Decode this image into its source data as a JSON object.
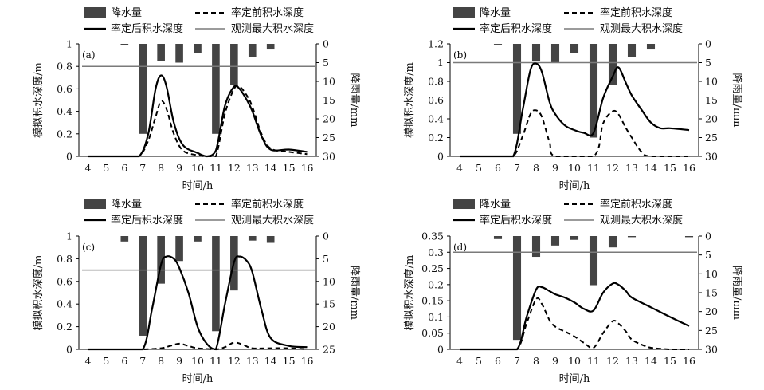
{
  "figure": {
    "legend": {
      "precip": "降水量",
      "before": "率定前积水深度",
      "after": "率定后积水深度",
      "observed": "观测最大积水深度"
    },
    "xlabel": "时间/h",
    "ylabel": "模拟积水深度/m",
    "y2label": "降雨量/mm",
    "colors": {
      "bar": "#444444",
      "line": "#000000",
      "observed": "#7a7a7a"
    }
  },
  "chart_data": [
    {
      "type": "bar+line",
      "panel_label": "(a)",
      "x": [
        4,
        5,
        6,
        7,
        8,
        9,
        10,
        11,
        12,
        13,
        14,
        15,
        16
      ],
      "ylim": [
        0,
        1.0
      ],
      "yticks": [
        0,
        0.2,
        0.4,
        0.6,
        0.8,
        1.0
      ],
      "y2lim": [
        0,
        30
      ],
      "y2ticks": [
        0,
        5,
        10,
        15,
        20,
        25,
        30
      ],
      "precipitation_mm": [
        0,
        0,
        0.3,
        24,
        4.5,
        5,
        2.5,
        24,
        11,
        3.5,
        1.5,
        0,
        0
      ],
      "before": [
        [
          4,
          0
        ],
        [
          6,
          0
        ],
        [
          6.8,
          0
        ],
        [
          7.3,
          0.14
        ],
        [
          7.7,
          0.35
        ],
        [
          8,
          0.49
        ],
        [
          8.3,
          0.42
        ],
        [
          8.7,
          0.2
        ],
        [
          9.2,
          0.05
        ],
        [
          10,
          0.01
        ],
        [
          10.5,
          0
        ],
        [
          11,
          0
        ],
        [
          11.5,
          0.38
        ],
        [
          12,
          0.6
        ],
        [
          12.3,
          0.62
        ],
        [
          12.7,
          0.54
        ],
        [
          13,
          0.44
        ],
        [
          13.5,
          0.2
        ],
        [
          14,
          0.07
        ],
        [
          15,
          0.04
        ],
        [
          16,
          0.02
        ]
      ],
      "after": [
        [
          4,
          0
        ],
        [
          6,
          0
        ],
        [
          6.8,
          0
        ],
        [
          7.3,
          0.2
        ],
        [
          7.7,
          0.6
        ],
        [
          8,
          0.72
        ],
        [
          8.3,
          0.62
        ],
        [
          8.7,
          0.3
        ],
        [
          9.2,
          0.1
        ],
        [
          10,
          0.03
        ],
        [
          10.5,
          0
        ],
        [
          11,
          0.05
        ],
        [
          11.5,
          0.45
        ],
        [
          12,
          0.62
        ],
        [
          12.3,
          0.6
        ],
        [
          12.7,
          0.5
        ],
        [
          13,
          0.4
        ],
        [
          13.5,
          0.18
        ],
        [
          14,
          0.06
        ],
        [
          15,
          0.06
        ],
        [
          16,
          0.04
        ]
      ],
      "observed_max": 0.8
    },
    {
      "type": "bar+line",
      "panel_label": "(b)",
      "x": [
        4,
        5,
        6,
        7,
        8,
        9,
        10,
        11,
        12,
        13,
        14,
        15,
        16
      ],
      "ylim": [
        0,
        1.2
      ],
      "yticks": [
        0,
        0.2,
        0.4,
        0.6,
        0.8,
        1.0,
        1.2
      ],
      "y2lim": [
        0,
        30
      ],
      "y2ticks": [
        0,
        5,
        10,
        15,
        20,
        25,
        30
      ],
      "precipitation_mm": [
        0,
        0,
        0.2,
        24,
        4.5,
        5,
        2.5,
        25,
        11,
        3.5,
        1.5,
        0,
        0
      ],
      "before": [
        [
          4,
          0
        ],
        [
          6,
          0
        ],
        [
          6.8,
          0
        ],
        [
          7.3,
          0.22
        ],
        [
          7.7,
          0.45
        ],
        [
          8,
          0.49
        ],
        [
          8.3,
          0.42
        ],
        [
          8.7,
          0.15
        ],
        [
          9,
          0
        ],
        [
          11,
          0
        ],
        [
          11.5,
          0.35
        ],
        [
          12,
          0.48
        ],
        [
          12.3,
          0.45
        ],
        [
          12.7,
          0.3
        ],
        [
          13,
          0.2
        ],
        [
          13.5,
          0.05
        ],
        [
          14,
          0
        ],
        [
          16,
          0
        ]
      ],
      "after": [
        [
          4,
          0
        ],
        [
          6,
          0
        ],
        [
          6.8,
          0
        ],
        [
          7.3,
          0.5
        ],
        [
          7.7,
          0.92
        ],
        [
          8,
          0.99
        ],
        [
          8.3,
          0.9
        ],
        [
          8.7,
          0.58
        ],
        [
          9,
          0.45
        ],
        [
          9.5,
          0.33
        ],
        [
          10,
          0.28
        ],
        [
          10.5,
          0.25
        ],
        [
          11,
          0.25
        ],
        [
          11.5,
          0.62
        ],
        [
          12,
          0.85
        ],
        [
          12.3,
          0.95
        ],
        [
          12.7,
          0.78
        ],
        [
          13,
          0.65
        ],
        [
          13.5,
          0.5
        ],
        [
          14,
          0.36
        ],
        [
          14.5,
          0.3
        ],
        [
          15,
          0.3
        ],
        [
          16,
          0.28
        ]
      ],
      "observed_max": 1.0
    },
    {
      "type": "bar+line",
      "panel_label": "(c)",
      "x": [
        4,
        5,
        6,
        7,
        8,
        9,
        10,
        11,
        12,
        13,
        14,
        15,
        16
      ],
      "ylim": [
        0,
        1.0
      ],
      "yticks": [
        0,
        0.2,
        0.4,
        0.6,
        0.8,
        1.0
      ],
      "y2lim": [
        0,
        25
      ],
      "y2ticks": [
        0,
        5,
        10,
        15,
        20,
        25
      ],
      "precipitation_mm": [
        0,
        0,
        1.2,
        22,
        10.5,
        5.5,
        1.2,
        21,
        12,
        1,
        1.5,
        0,
        0
      ],
      "before": [
        [
          4,
          0
        ],
        [
          6,
          0
        ],
        [
          7,
          0
        ],
        [
          8,
          0.01
        ],
        [
          8.5,
          0.03
        ],
        [
          9,
          0.05
        ],
        [
          9.5,
          0.03
        ],
        [
          10,
          0.01
        ],
        [
          11,
          0
        ],
        [
          11.5,
          0.02
        ],
        [
          12,
          0.06
        ],
        [
          12.5,
          0.04
        ],
        [
          13,
          0.01
        ],
        [
          14,
          0.01
        ],
        [
          15,
          0.01
        ],
        [
          16,
          0
        ]
      ],
      "after": [
        [
          4,
          0
        ],
        [
          6,
          0
        ],
        [
          7,
          0
        ],
        [
          7.5,
          0.35
        ],
        [
          8,
          0.75
        ],
        [
          8.3,
          0.82
        ],
        [
          8.7,
          0.8
        ],
        [
          9,
          0.72
        ],
        [
          9.5,
          0.5
        ],
        [
          10,
          0.2
        ],
        [
          10.5,
          0.05
        ],
        [
          11,
          0
        ],
        [
          11.5,
          0.4
        ],
        [
          12,
          0.77
        ],
        [
          12.3,
          0.82
        ],
        [
          12.7,
          0.78
        ],
        [
          13,
          0.68
        ],
        [
          13.5,
          0.35
        ],
        [
          14,
          0.1
        ],
        [
          15,
          0.03
        ],
        [
          16,
          0.02
        ]
      ],
      "observed_max": 0.7
    },
    {
      "type": "bar+line",
      "panel_label": "(d)",
      "x": [
        4,
        5,
        6,
        7,
        8,
        9,
        10,
        11,
        12,
        13,
        14,
        15,
        16
      ],
      "ylim": [
        0,
        0.35
      ],
      "yticks": [
        0,
        0.05,
        0.1,
        0.15,
        0.2,
        0.25,
        0.3,
        0.35
      ],
      "y2lim": [
        0,
        30
      ],
      "y2ticks": [
        0,
        5,
        10,
        15,
        20,
        25,
        30
      ],
      "precipitation_mm": [
        0,
        0,
        0.8,
        27.5,
        5.5,
        2.5,
        1,
        13,
        3,
        0.3,
        0,
        0,
        0.3
      ],
      "before": [
        [
          4,
          0
        ],
        [
          6,
          0
        ],
        [
          7,
          0
        ],
        [
          7.5,
          0.08
        ],
        [
          8,
          0.155
        ],
        [
          8.3,
          0.14
        ],
        [
          8.7,
          0.09
        ],
        [
          9,
          0.07
        ],
        [
          9.5,
          0.055
        ],
        [
          10,
          0.04
        ],
        [
          10.5,
          0.02
        ],
        [
          11,
          0.005
        ],
        [
          11.5,
          0.05
        ],
        [
          12,
          0.087
        ],
        [
          12.3,
          0.08
        ],
        [
          12.7,
          0.055
        ],
        [
          13,
          0.03
        ],
        [
          13.5,
          0.015
        ],
        [
          14,
          0.005
        ],
        [
          15,
          0
        ],
        [
          16,
          0
        ]
      ],
      "after": [
        [
          4,
          0
        ],
        [
          6,
          0
        ],
        [
          7,
          0
        ],
        [
          7.5,
          0.1
        ],
        [
          8,
          0.185
        ],
        [
          8.3,
          0.192
        ],
        [
          8.7,
          0.18
        ],
        [
          9,
          0.17
        ],
        [
          9.5,
          0.16
        ],
        [
          10,
          0.145
        ],
        [
          10.5,
          0.125
        ],
        [
          11,
          0.12
        ],
        [
          11.5,
          0.175
        ],
        [
          12,
          0.203
        ],
        [
          12.3,
          0.2
        ],
        [
          12.7,
          0.18
        ],
        [
          13,
          0.16
        ],
        [
          14,
          0.13
        ],
        [
          15,
          0.1
        ],
        [
          16,
          0.072
        ]
      ],
      "observed_max": 0.3
    }
  ]
}
